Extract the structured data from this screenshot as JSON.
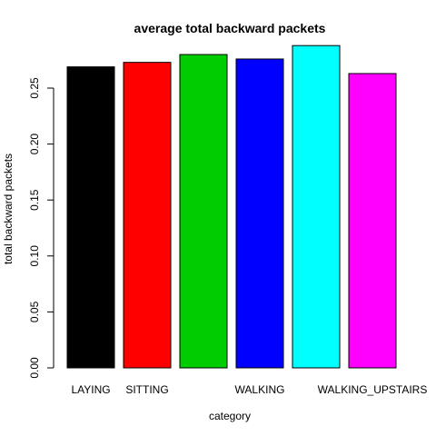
{
  "chart_data": {
    "type": "bar",
    "title": "average total backward packets",
    "xlabel": "category",
    "ylabel": "total backward packets",
    "categories": [
      "LAYING",
      "SITTING",
      "",
      "WALKING",
      "",
      "WALKING_UPSTAIRS"
    ],
    "values": [
      0.269,
      0.273,
      0.28,
      0.276,
      0.288,
      0.263
    ],
    "colors": [
      "#000000",
      "#ff0000",
      "#00cd00",
      "#0000ff",
      "#00ffff",
      "#ff00ff"
    ],
    "ylim": [
      0,
      0.3
    ],
    "yticks": [
      0.0,
      0.05,
      0.1,
      0.15,
      0.2,
      0.25
    ],
    "ytick_labels": [
      "0.00",
      "0.05",
      "0.10",
      "0.15",
      "0.20",
      "0.25"
    ],
    "grid": false,
    "legend": "none"
  }
}
